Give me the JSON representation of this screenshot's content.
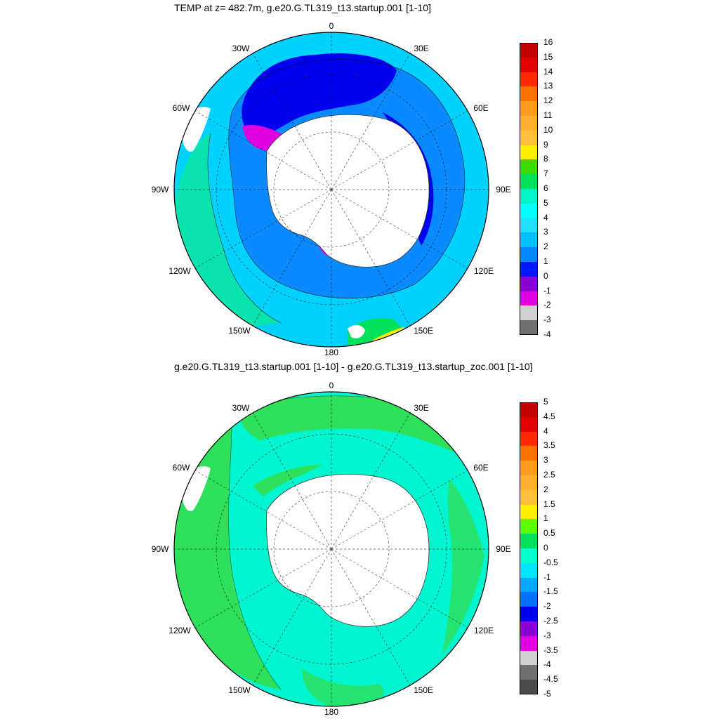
{
  "panels": [
    {
      "title": "TEMP at z= 482.7m, g.e20.G.TL319_t13.startup.001 [1-10]",
      "lon_labels": {
        "n": "0",
        "nne": "30E",
        "ene": "60E",
        "e": "90E",
        "ese": "120E",
        "sse": "150E",
        "s": "180",
        "ssw": "150W",
        "wsw": "120W",
        "w": "90W",
        "wnw": "60W",
        "nnw": "30W"
      },
      "colorbar": {
        "labels": [
          "16",
          "15",
          "14",
          "13",
          "12",
          "11",
          "10",
          "9",
          "8",
          "7",
          "6",
          "5",
          "4",
          "3",
          "2",
          "1",
          "0",
          "-1",
          "-2",
          "-3",
          "-4"
        ],
        "colors": [
          "#c30000",
          "#e30000",
          "#ff2a00",
          "#ff7200",
          "#ff9a20",
          "#ffb030",
          "#ffc040",
          "#fff000",
          "#3cdc00",
          "#00e05a",
          "#00f5c8",
          "#00ffff",
          "#1fe0ff",
          "#00c0ff",
          "#0088ff",
          "#0018ff",
          "#8a00d2",
          "#e000e0",
          "#d0d0d0",
          "#707070"
        ]
      },
      "fields": {
        "ocean_outer": "#00d2ff",
        "ring_mid": "#0a8aff",
        "ring_inner": "#0000f0",
        "shelf": "#e000e0",
        "land": "#ffffff",
        "warm_edge": "#00f5c8",
        "warmest": "#fff000"
      }
    },
    {
      "title": "g.e20.G.TL319_t13.startup.001 [1-10] - g.e20.G.TL319_t13.startup_zoc.001 [1-10]",
      "lon_labels": {
        "n": "0",
        "nne": "30E",
        "ene": "60E",
        "e": "90E",
        "ese": "120E",
        "sse": "150E",
        "s": "180",
        "ssw": "150W",
        "wsw": "120W",
        "w": "90W",
        "wnw": "60W",
        "nnw": "30W"
      },
      "colorbar": {
        "labels": [
          "5",
          "4.5",
          "4",
          "3.5",
          "3",
          "2.5",
          "2",
          "1.5",
          "1",
          "0.5",
          "0",
          "-0.5",
          "-1",
          "-1.5",
          "-2",
          "-2.5",
          "-3",
          "-3.5",
          "-4",
          "-4.5",
          "-5"
        ],
        "colors": [
          "#c30000",
          "#e30000",
          "#ff2a00",
          "#ff7200",
          "#ff9a20",
          "#ffb030",
          "#ffc040",
          "#fff000",
          "#5aff00",
          "#00e05a",
          "#00ffcc",
          "#00e6ff",
          "#00aaff",
          "#0070ff",
          "#0000f0",
          "#8a00d2",
          "#e000e0",
          "#d0d0d0",
          "#707070",
          "#4a4a4a"
        ]
      },
      "fields": {
        "ocean": "#00f5d0",
        "green": "#2ee05a",
        "land": "#ffffff"
      }
    }
  ]
}
